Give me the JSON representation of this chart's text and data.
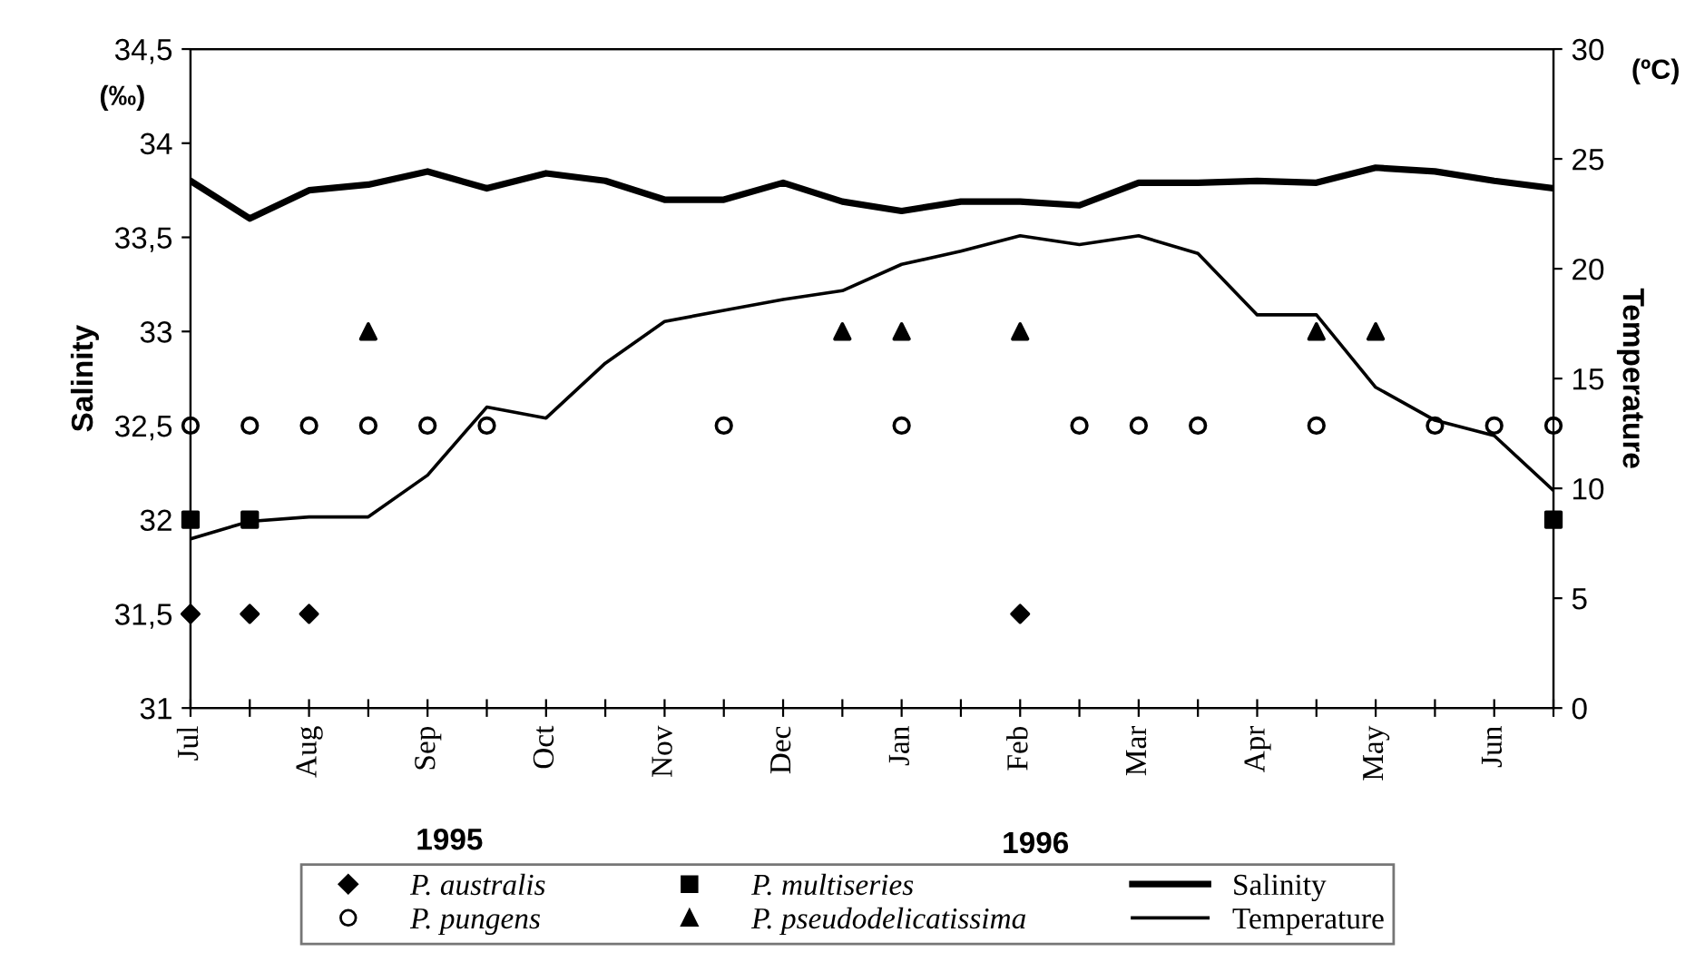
{
  "chart_data": {
    "type": "line",
    "categories": [
      "Jul",
      null,
      "Aug",
      null,
      "Sep",
      null,
      "Oct",
      null,
      "Nov",
      null,
      "Dec",
      null,
      "Jan",
      null,
      "Feb",
      null,
      "Mar",
      null,
      "Apr",
      null,
      "May",
      null,
      "Jun",
      null
    ],
    "ylim": [
      31,
      34.5
    ],
    "yticks": [
      31,
      {
        "value": 31.5,
        "label": "31,5"
      },
      32,
      {
        "value": 32.5,
        "label": "32,5"
      },
      33,
      {
        "value": 33.5,
        "label": "33,5"
      },
      34,
      {
        "value": 34.5,
        "label": "34,5"
      }
    ],
    "y2lim": [
      0,
      30
    ],
    "y2ticks": [
      0,
      5,
      10,
      15,
      20,
      25,
      30
    ],
    "ylabel": "Salinity",
    "y2label": "Temperature",
    "annotations": [
      "(‰)",
      "(ºC)",
      "1995",
      "1996"
    ],
    "grid": false,
    "legend": "bottom",
    "series": [
      {
        "name": "P. australis",
        "type": "scatter",
        "marker": "diamond",
        "color": "#000000",
        "values": [
          31.5,
          31.5,
          31.5,
          null,
          null,
          null,
          null,
          null,
          null,
          null,
          null,
          null,
          null,
          null,
          31.5,
          null,
          null,
          null,
          null,
          null,
          null,
          null,
          null,
          null
        ]
      },
      {
        "name": "P. pungens",
        "type": "scatter",
        "marker": "circle",
        "color": "#000000",
        "values": [
          32.5,
          32.5,
          32.5,
          32.5,
          32.5,
          32.5,
          null,
          null,
          null,
          32.5,
          null,
          null,
          32.5,
          null,
          null,
          32.5,
          32.5,
          32.5,
          null,
          32.5,
          null,
          32.5,
          32.5,
          32.5
        ]
      },
      {
        "name": "P. multiseries",
        "type": "scatter",
        "marker": "square",
        "color": "#000000",
        "values": [
          32,
          32,
          null,
          null,
          null,
          null,
          null,
          null,
          null,
          null,
          null,
          null,
          null,
          null,
          null,
          null,
          null,
          null,
          null,
          null,
          null,
          null,
          null,
          32
        ]
      },
      {
        "name": "P. pseudodelicatissima",
        "type": "scatter",
        "marker": "triangle",
        "color": "#000000",
        "values": [
          null,
          null,
          null,
          33,
          null,
          null,
          null,
          null,
          null,
          null,
          null,
          33,
          33,
          null,
          33,
          null,
          null,
          null,
          null,
          33,
          33,
          null,
          null,
          null
        ]
      },
      {
        "name": "Salinity",
        "marker": "none",
        "color": "#000000",
        "axis": "y",
        "values": [
          33.8,
          33.6,
          33.75,
          33.78,
          33.85,
          33.76,
          33.84,
          33.8,
          33.7,
          33.7,
          33.79,
          33.69,
          33.64,
          33.69,
          33.69,
          33.67,
          33.79,
          33.79,
          33.8,
          33.79,
          33.87,
          33.85,
          33.8,
          33.76
        ]
      },
      {
        "name": "Temperature",
        "marker": "none",
        "color": "#000000",
        "axis": "y2",
        "values": [
          7.7,
          8.5,
          8.7,
          8.7,
          10.6,
          13.7,
          13.2,
          15.7,
          17.6,
          18.1,
          18.6,
          19.0,
          20.2,
          20.8,
          21.5,
          21.1,
          21.5,
          20.7,
          17.9,
          17.9,
          14.6,
          13.1,
          12.4,
          9.9
        ]
      }
    ]
  }
}
